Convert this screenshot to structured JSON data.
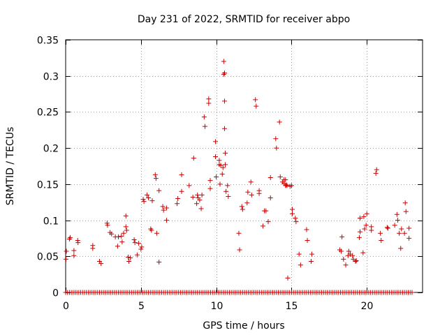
{
  "chart_data": {
    "type": "scatter",
    "title": "Day 231 of 2022, SRMTID for receiver abpo",
    "xlabel": "GPS time / hours",
    "ylabel": "SRMTID / TECUs",
    "xlim": [
      0,
      23.7
    ],
    "ylim": [
      0,
      0.35
    ],
    "grid": true,
    "x_ticks": [
      0,
      5,
      10,
      15,
      20
    ],
    "y_ticks": [
      0,
      0.05,
      0.1,
      0.15,
      0.2,
      0.25,
      0.3,
      0.35
    ],
    "x_tick_labels": [
      "0",
      "5",
      "10",
      "15",
      "20"
    ],
    "y_tick_labels": [
      "0",
      "0.05",
      "0.1",
      "0.15",
      "0.2",
      "0.25",
      "0.3",
      "0.35"
    ],
    "marker": "+",
    "color": "#cc0000",
    "zero_line": {
      "y": 0,
      "x_start": 0,
      "x_end": 23,
      "step": 0.125
    },
    "series": [
      {
        "name": "SRMTID",
        "points": [
          [
            0.02,
            0.046
          ],
          [
            0.05,
            0.057
          ],
          [
            0.25,
            0.074
          ],
          [
            0.3,
            0.076
          ],
          [
            0.55,
            0.058
          ],
          [
            0.55,
            0.051
          ],
          [
            0.8,
            0.072
          ],
          [
            0.82,
            0.069
          ],
          [
            1.8,
            0.065
          ],
          [
            1.8,
            0.061
          ],
          [
            2.25,
            0.043
          ],
          [
            2.35,
            0.04
          ],
          [
            2.75,
            0.096
          ],
          [
            2.78,
            0.093
          ],
          [
            2.95,
            0.083
          ],
          [
            3.05,
            0.081
          ],
          [
            3.3,
            0.077
          ],
          [
            3.45,
            0.064
          ],
          [
            3.5,
            0.077
          ],
          [
            3.7,
            0.078
          ],
          [
            3.75,
            0.07
          ],
          [
            3.85,
            0.082
          ],
          [
            4.0,
            0.106
          ],
          [
            4.0,
            0.091
          ],
          [
            4.05,
            0.086
          ],
          [
            4.15,
            0.049
          ],
          [
            4.2,
            0.043
          ],
          [
            4.3,
            0.048
          ],
          [
            4.55,
            0.073
          ],
          [
            4.6,
            0.069
          ],
          [
            4.75,
            0.052
          ],
          [
            4.85,
            0.068
          ],
          [
            5.0,
            0.06
          ],
          [
            5.05,
            0.063
          ],
          [
            5.15,
            0.129
          ],
          [
            5.2,
            0.126
          ],
          [
            5.4,
            0.135
          ],
          [
            5.5,
            0.131
          ],
          [
            5.65,
            0.088
          ],
          [
            5.7,
            0.086
          ],
          [
            5.75,
            0.127
          ],
          [
            5.95,
            0.163
          ],
          [
            6.0,
            0.158
          ],
          [
            6.05,
            0.082
          ],
          [
            6.2,
            0.141
          ],
          [
            6.2,
            0.042
          ],
          [
            6.45,
            0.119
          ],
          [
            6.5,
            0.114
          ],
          [
            6.7,
            0.117
          ],
          [
            6.7,
            0.1
          ],
          [
            7.4,
            0.123
          ],
          [
            7.45,
            0.13
          ],
          [
            7.7,
            0.163
          ],
          [
            7.7,
            0.14
          ],
          [
            8.2,
            0.148
          ],
          [
            8.45,
            0.132
          ],
          [
            8.5,
            0.186
          ],
          [
            8.7,
            0.123
          ],
          [
            8.75,
            0.135
          ],
          [
            8.8,
            0.131
          ],
          [
            8.9,
            0.128
          ],
          [
            9.0,
            0.116
          ],
          [
            9.05,
            0.135
          ],
          [
            9.2,
            0.243
          ],
          [
            9.25,
            0.23
          ],
          [
            9.5,
            0.268
          ],
          [
            9.5,
            0.262
          ],
          [
            9.6,
            0.155
          ],
          [
            9.6,
            0.144
          ],
          [
            9.95,
            0.209
          ],
          [
            9.95,
            0.188
          ],
          [
            10.0,
            0.16
          ],
          [
            10.2,
            0.183
          ],
          [
            10.2,
            0.177
          ],
          [
            10.25,
            0.15
          ],
          [
            10.3,
            0.176
          ],
          [
            10.4,
            0.164
          ],
          [
            10.45,
            0.173
          ],
          [
            10.5,
            0.32
          ],
          [
            10.5,
            0.302
          ],
          [
            10.55,
            0.304
          ],
          [
            10.55,
            0.265
          ],
          [
            10.55,
            0.227
          ],
          [
            10.6,
            0.193
          ],
          [
            10.6,
            0.177
          ],
          [
            10.65,
            0.14
          ],
          [
            10.75,
            0.148
          ],
          [
            10.8,
            0.133
          ],
          [
            11.5,
            0.082
          ],
          [
            11.55,
            0.059
          ],
          [
            11.7,
            0.119
          ],
          [
            11.75,
            0.115
          ],
          [
            12.1,
            0.139
          ],
          [
            12.05,
            0.124
          ],
          [
            12.3,
            0.153
          ],
          [
            12.35,
            0.135
          ],
          [
            12.6,
            0.267
          ],
          [
            12.65,
            0.258
          ],
          [
            12.85,
            0.137
          ],
          [
            12.85,
            0.141
          ],
          [
            13.1,
            0.092
          ],
          [
            13.2,
            0.113
          ],
          [
            13.45,
            0.098
          ],
          [
            13.3,
            0.113
          ],
          [
            13.6,
            0.131
          ],
          [
            13.6,
            0.159
          ],
          [
            13.95,
            0.213
          ],
          [
            14.0,
            0.2
          ],
          [
            14.2,
            0.236
          ],
          [
            14.25,
            0.16
          ],
          [
            14.4,
            0.153
          ],
          [
            14.5,
            0.151
          ],
          [
            14.5,
            0.156
          ],
          [
            14.6,
            0.148
          ],
          [
            14.6,
            0.156
          ],
          [
            14.65,
            0.149
          ],
          [
            14.7,
            0.148
          ],
          [
            14.75,
            0.02
          ],
          [
            14.9,
            0.147
          ],
          [
            15.0,
            0.148
          ],
          [
            15.05,
            0.109
          ],
          [
            15.05,
            0.115
          ],
          [
            15.25,
            0.103
          ],
          [
            15.3,
            0.098
          ],
          [
            15.5,
            0.053
          ],
          [
            15.6,
            0.038
          ],
          [
            16.0,
            0.087
          ],
          [
            16.05,
            0.072
          ],
          [
            16.3,
            0.043
          ],
          [
            16.35,
            0.053
          ],
          [
            18.2,
            0.059
          ],
          [
            18.3,
            0.057
          ],
          [
            18.35,
            0.077
          ],
          [
            18.45,
            0.046
          ],
          [
            18.6,
            0.038
          ],
          [
            18.75,
            0.051
          ],
          [
            18.8,
            0.057
          ],
          [
            18.9,
            0.053
          ],
          [
            19.05,
            0.051
          ],
          [
            19.1,
            0.046
          ],
          [
            19.25,
            0.043
          ],
          [
            19.3,
            0.044
          ],
          [
            19.5,
            0.076
          ],
          [
            19.55,
            0.084
          ],
          [
            19.55,
            0.103
          ],
          [
            19.75,
            0.055
          ],
          [
            19.8,
            0.105
          ],
          [
            19.85,
            0.088
          ],
          [
            19.95,
            0.093
          ],
          [
            20.0,
            0.109
          ],
          [
            20.3,
            0.086
          ],
          [
            20.3,
            0.091
          ],
          [
            20.6,
            0.165
          ],
          [
            20.65,
            0.17
          ],
          [
            20.9,
            0.082
          ],
          [
            20.95,
            0.072
          ],
          [
            21.35,
            0.09
          ],
          [
            21.4,
            0.089
          ],
          [
            21.85,
            0.093
          ],
          [
            22.0,
            0.108
          ],
          [
            22.05,
            0.1
          ],
          [
            22.15,
            0.082
          ],
          [
            22.25,
            0.061
          ],
          [
            22.3,
            0.088
          ],
          [
            22.5,
            0.082
          ],
          [
            22.55,
            0.124
          ],
          [
            22.6,
            0.112
          ],
          [
            22.8,
            0.089
          ],
          [
            22.8,
            0.075
          ]
        ]
      }
    ]
  }
}
